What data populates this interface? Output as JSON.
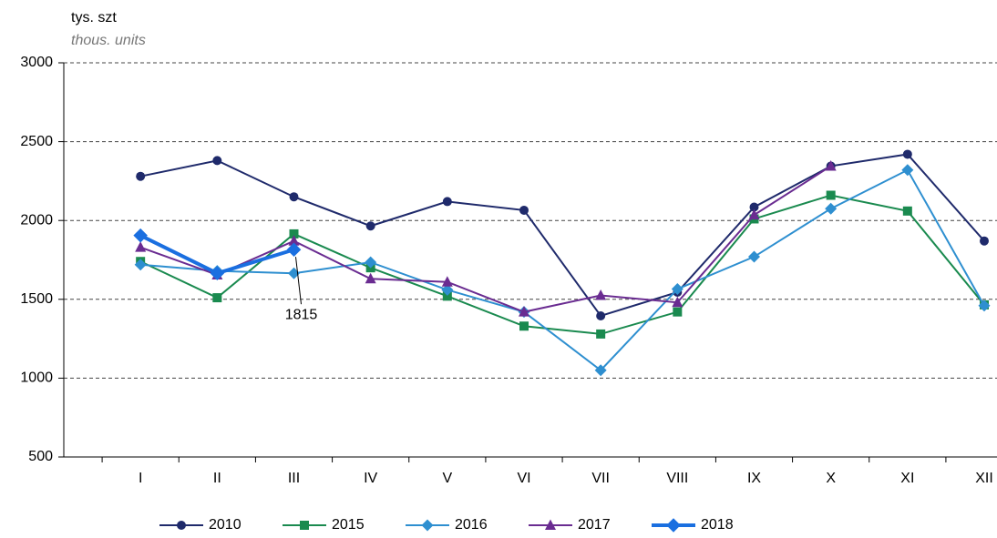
{
  "chart_data": {
    "type": "line",
    "y_label": "tys. szt",
    "y_label_en": "thous. units",
    "categories": [
      "I",
      "II",
      "III",
      "IV",
      "V",
      "VI",
      "VII",
      "VIII",
      "IX",
      "X",
      "XI",
      "XII"
    ],
    "series": [
      {
        "name": "2010",
        "color": "#1f2a6b",
        "marker": "circle",
        "width": 2,
        "values": [
          2280,
          2380,
          2150,
          1965,
          2120,
          2065,
          1395,
          1545,
          2085,
          2345,
          2420,
          1870
        ]
      },
      {
        "name": "2015",
        "color": "#1a8a4f",
        "marker": "square",
        "width": 2,
        "values": [
          1740,
          1510,
          1915,
          1700,
          1520,
          1330,
          1280,
          1420,
          2010,
          2160,
          2060,
          1465
        ]
      },
      {
        "name": "2016",
        "color": "#2e8fd0",
        "marker": "diamond",
        "width": 2,
        "values": [
          1720,
          1680,
          1665,
          1735,
          1560,
          1420,
          1050,
          1565,
          1770,
          2075,
          2320,
          1460
        ]
      },
      {
        "name": "2017",
        "color": "#6a2c91",
        "marker": "triangle",
        "width": 2,
        "values": [
          1830,
          1655,
          1870,
          1630,
          1610,
          1420,
          1525,
          1480,
          2035,
          2345,
          null,
          null
        ]
      },
      {
        "name": "2018",
        "color": "#1a6fe0",
        "marker": "diamond",
        "width": 4,
        "values": [
          1905,
          1665,
          1815,
          null,
          null,
          null,
          null,
          null,
          null,
          null,
          null,
          null
        ]
      }
    ],
    "ylim": [
      500,
      3000
    ],
    "yticks": [
      500,
      1000,
      1500,
      2000,
      2500,
      3000
    ],
    "grid": true,
    "annotation": {
      "series": 4,
      "index": 2
    }
  }
}
